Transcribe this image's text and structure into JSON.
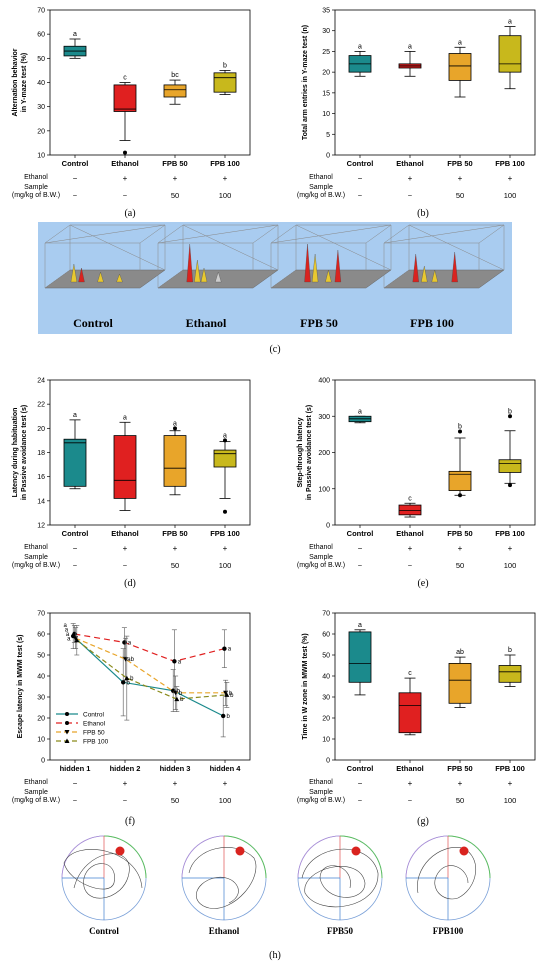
{
  "colors": {
    "control": "#1b8a8c",
    "ethanol": "#e02020",
    "fpb50": "#e8a52a",
    "fpb100": "#c8b81c",
    "panel_c_bg": "#a9ccf0",
    "maze_red": "#d9231f"
  },
  "common": {
    "categories": [
      "Control",
      "Ethanol",
      "FPB 50",
      "FPB 100"
    ],
    "ethanol_row": {
      "label": "Ethanol",
      "values": [
        "−",
        "+",
        "+",
        "+"
      ]
    },
    "sample_row": {
      "label_1": "Sample",
      "label_2": "(mg/kg of B.W.)",
      "values": [
        "−",
        "−",
        "50",
        "100"
      ]
    }
  },
  "panel_labels": {
    "a": "(a)",
    "b": "(b)",
    "c": "(c)",
    "d": "(d)",
    "e": "(e)",
    "f": "(f)",
    "g": "(g)",
    "h": "(h)"
  },
  "panel_c": {
    "labels": [
      "Control",
      "Ethanol",
      "FPB 50",
      "FPB 100"
    ]
  },
  "panel_h": {
    "labels": [
      "Control",
      "Ethanol",
      "FPB50",
      "FPB100"
    ]
  },
  "chart_data": [
    {
      "id": "a",
      "type": "box",
      "ylabel_1": "Alternation behavior",
      "ylabel_2": "in Y-maze test (%)",
      "ylim": [
        10,
        70
      ],
      "yticks": [
        10,
        20,
        30,
        40,
        50,
        60,
        70
      ],
      "categories": [
        "Control",
        "Ethanol",
        "FPB 50",
        "FPB 100"
      ],
      "boxes": [
        {
          "min": 50,
          "q1": 51,
          "median": 53,
          "q3": 55,
          "max": 58,
          "outliers": [],
          "letter": "a"
        },
        {
          "min": 16,
          "q1": 28,
          "median": 29,
          "q3": 39,
          "max": 40,
          "outliers": [
            11
          ],
          "letter": "c"
        },
        {
          "min": 31,
          "q1": 34,
          "median": 37,
          "q3": 39,
          "max": 41,
          "outliers": [],
          "letter": "bc"
        },
        {
          "min": 35,
          "q1": 36,
          "median": 42,
          "q3": 44,
          "max": 45,
          "outliers": [],
          "letter": "b"
        }
      ]
    },
    {
      "id": "b",
      "type": "box",
      "ylabel_1": "Total arm entries in Y-maze test (n)",
      "ylabel_2": "",
      "ylim": [
        0,
        35
      ],
      "yticks": [
        0,
        5,
        10,
        15,
        20,
        25,
        30,
        35
      ],
      "categories": [
        "Control",
        "Ethanol",
        "FPB 50",
        "FPB 100"
      ],
      "boxes": [
        {
          "min": 19,
          "q1": 20,
          "median": 22,
          "q3": 24,
          "max": 25,
          "outliers": [],
          "letter": "a"
        },
        {
          "min": 19,
          "q1": 21,
          "median": 21.5,
          "q3": 22,
          "max": 25,
          "outliers": [],
          "letter": "a"
        },
        {
          "min": 14,
          "q1": 18,
          "median": 21.5,
          "q3": 24.5,
          "max": 26,
          "outliers": [],
          "letter": "a"
        },
        {
          "min": 16,
          "q1": 20,
          "median": 22,
          "q3": 28.8,
          "max": 31,
          "outliers": [],
          "letter": "a"
        }
      ]
    },
    {
      "id": "d",
      "type": "box",
      "ylabel_1": "Latency during habituation",
      "ylabel_2": "in Passive avoidance test (s)",
      "ylim": [
        12,
        24
      ],
      "yticks": [
        12,
        14,
        16,
        18,
        20,
        22,
        24
      ],
      "categories": [
        "Control",
        "Ethanol",
        "FPB 50",
        "FPB 100"
      ],
      "boxes": [
        {
          "min": 15,
          "q1": 15.2,
          "median": 18.8,
          "q3": 19.1,
          "max": 20.7,
          "outliers": [],
          "letter": "a"
        },
        {
          "min": 13.2,
          "q1": 14.2,
          "median": 15.7,
          "q3": 19.4,
          "max": 20.5,
          "outliers": [],
          "letter": "a"
        },
        {
          "min": 14.5,
          "q1": 15.2,
          "median": 16.7,
          "q3": 19.4,
          "max": 19.8,
          "outliers": [
            20
          ],
          "letter": "a"
        },
        {
          "min": 14.2,
          "q1": 16.8,
          "median": 17.9,
          "q3": 18.2,
          "max": 18.9,
          "outliers": [
            19,
            13.1
          ],
          "letter": "a"
        }
      ]
    },
    {
      "id": "e",
      "type": "box",
      "ylabel_1": "Step-through latency",
      "ylabel_2": "in Passive avoidance test (s)",
      "ylim": [
        0,
        400
      ],
      "yticks": [
        0,
        100,
        200,
        300,
        400
      ],
      "categories": [
        "Control",
        "Ethanol",
        "FPB 50",
        "FPB 100"
      ],
      "boxes": [
        {
          "min": 282,
          "q1": 285,
          "median": 293,
          "q3": 300,
          "max": 300,
          "outliers": [],
          "letter": "a"
        },
        {
          "min": 22,
          "q1": 28,
          "median": 40,
          "q3": 55,
          "max": 60,
          "outliers": [],
          "letter": "c"
        },
        {
          "min": 82,
          "q1": 95,
          "median": 140,
          "q3": 148,
          "max": 240,
          "outliers": [
            258,
            82
          ],
          "letter": "b"
        },
        {
          "min": 115,
          "q1": 145,
          "median": 170,
          "q3": 180,
          "max": 260,
          "outliers": [
            300,
            110
          ],
          "letter": "b"
        }
      ]
    },
    {
      "id": "f",
      "type": "line",
      "ylabel_1": "Escape latency in MWM test (s)",
      "ylabel_2": "",
      "ylim": [
        0,
        70
      ],
      "yticks": [
        0,
        10,
        20,
        30,
        40,
        50,
        60,
        70
      ],
      "categories": [
        "hidden 1",
        "hidden 2",
        "hidden 3",
        "hidden 4"
      ],
      "series": [
        {
          "name": "Control",
          "values": [
            59,
            37,
            33,
            21
          ],
          "errors": [
            6,
            16,
            10,
            10
          ],
          "letters": [
            "a",
            "b",
            "b",
            "b"
          ],
          "color": "#1b8a8c",
          "dash": "",
          "marker": "circle"
        },
        {
          "name": "Ethanol",
          "values": [
            60,
            56,
            47,
            53
          ],
          "errors": [
            4,
            7,
            15,
            9
          ],
          "letters": [
            "a",
            "a",
            "a",
            "a"
          ],
          "color": "#e02020",
          "dash": "6,4",
          "marker": "circle"
        },
        {
          "name": "FPB 50",
          "values": [
            58,
            48,
            32,
            32
          ],
          "errors": [
            5,
            10,
            8,
            6
          ],
          "letters": [
            "a",
            "ab",
            "b",
            "b"
          ],
          "color": "#e8a52a",
          "dash": "5,3",
          "marker": "tri-down"
        },
        {
          "name": "FPB 100",
          "values": [
            57,
            39,
            29,
            31
          ],
          "errors": [
            7,
            20,
            6,
            6
          ],
          "letters": [
            "a",
            "b",
            "b",
            "b"
          ],
          "color": "#8a8a1a",
          "dash": "5,3",
          "marker": "tri-up"
        }
      ]
    },
    {
      "id": "g",
      "type": "box",
      "ylabel_1": "Time in W zone in MWM test (%)",
      "ylabel_2": "",
      "ylim": [
        0,
        70
      ],
      "yticks": [
        0,
        10,
        20,
        30,
        40,
        50,
        60,
        70
      ],
      "categories": [
        "Control",
        "Ethanol",
        "FPB 50",
        "FPB 100"
      ],
      "boxes": [
        {
          "min": 31,
          "q1": 37,
          "median": 46,
          "q3": 61,
          "max": 62,
          "outliers": [],
          "letter": "a"
        },
        {
          "min": 12,
          "q1": 13,
          "median": 26,
          "q3": 32,
          "max": 39,
          "outliers": [],
          "letter": "c"
        },
        {
          "min": 25,
          "q1": 27,
          "median": 38,
          "q3": 46,
          "max": 49,
          "outliers": [],
          "letter": "ab"
        },
        {
          "min": 35,
          "q1": 37,
          "median": 42,
          "q3": 45,
          "max": 50,
          "outliers": [],
          "letter": "b"
        }
      ]
    }
  ]
}
